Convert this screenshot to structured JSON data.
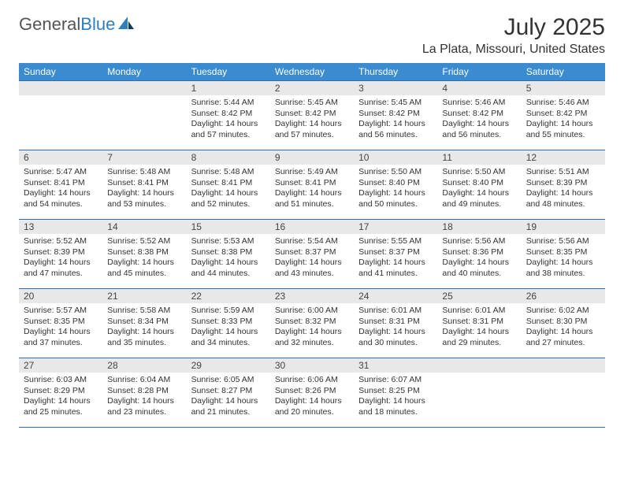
{
  "brand": {
    "part1": "General",
    "part2": "Blue"
  },
  "title": "July 2025",
  "location": "La Plata, Missouri, United States",
  "colors": {
    "header_bg": "#3a8bd0",
    "header_text": "#ffffff",
    "row_border": "#2f6fa8",
    "daynum_bg": "#e8e8e8",
    "brand_blue": "#2f7fbf"
  },
  "weekdays": [
    "Sunday",
    "Monday",
    "Tuesday",
    "Wednesday",
    "Thursday",
    "Friday",
    "Saturday"
  ],
  "weeks": [
    [
      null,
      null,
      {
        "n": "1",
        "sr": "5:44 AM",
        "ss": "8:42 PM",
        "dl": "14 hours and 57 minutes."
      },
      {
        "n": "2",
        "sr": "5:45 AM",
        "ss": "8:42 PM",
        "dl": "14 hours and 57 minutes."
      },
      {
        "n": "3",
        "sr": "5:45 AM",
        "ss": "8:42 PM",
        "dl": "14 hours and 56 minutes."
      },
      {
        "n": "4",
        "sr": "5:46 AM",
        "ss": "8:42 PM",
        "dl": "14 hours and 56 minutes."
      },
      {
        "n": "5",
        "sr": "5:46 AM",
        "ss": "8:42 PM",
        "dl": "14 hours and 55 minutes."
      }
    ],
    [
      {
        "n": "6",
        "sr": "5:47 AM",
        "ss": "8:41 PM",
        "dl": "14 hours and 54 minutes."
      },
      {
        "n": "7",
        "sr": "5:48 AM",
        "ss": "8:41 PM",
        "dl": "14 hours and 53 minutes."
      },
      {
        "n": "8",
        "sr": "5:48 AM",
        "ss": "8:41 PM",
        "dl": "14 hours and 52 minutes."
      },
      {
        "n": "9",
        "sr": "5:49 AM",
        "ss": "8:41 PM",
        "dl": "14 hours and 51 minutes."
      },
      {
        "n": "10",
        "sr": "5:50 AM",
        "ss": "8:40 PM",
        "dl": "14 hours and 50 minutes."
      },
      {
        "n": "11",
        "sr": "5:50 AM",
        "ss": "8:40 PM",
        "dl": "14 hours and 49 minutes."
      },
      {
        "n": "12",
        "sr": "5:51 AM",
        "ss": "8:39 PM",
        "dl": "14 hours and 48 minutes."
      }
    ],
    [
      {
        "n": "13",
        "sr": "5:52 AM",
        "ss": "8:39 PM",
        "dl": "14 hours and 47 minutes."
      },
      {
        "n": "14",
        "sr": "5:52 AM",
        "ss": "8:38 PM",
        "dl": "14 hours and 45 minutes."
      },
      {
        "n": "15",
        "sr": "5:53 AM",
        "ss": "8:38 PM",
        "dl": "14 hours and 44 minutes."
      },
      {
        "n": "16",
        "sr": "5:54 AM",
        "ss": "8:37 PM",
        "dl": "14 hours and 43 minutes."
      },
      {
        "n": "17",
        "sr": "5:55 AM",
        "ss": "8:37 PM",
        "dl": "14 hours and 41 minutes."
      },
      {
        "n": "18",
        "sr": "5:56 AM",
        "ss": "8:36 PM",
        "dl": "14 hours and 40 minutes."
      },
      {
        "n": "19",
        "sr": "5:56 AM",
        "ss": "8:35 PM",
        "dl": "14 hours and 38 minutes."
      }
    ],
    [
      {
        "n": "20",
        "sr": "5:57 AM",
        "ss": "8:35 PM",
        "dl": "14 hours and 37 minutes."
      },
      {
        "n": "21",
        "sr": "5:58 AM",
        "ss": "8:34 PM",
        "dl": "14 hours and 35 minutes."
      },
      {
        "n": "22",
        "sr": "5:59 AM",
        "ss": "8:33 PM",
        "dl": "14 hours and 34 minutes."
      },
      {
        "n": "23",
        "sr": "6:00 AM",
        "ss": "8:32 PM",
        "dl": "14 hours and 32 minutes."
      },
      {
        "n": "24",
        "sr": "6:01 AM",
        "ss": "8:31 PM",
        "dl": "14 hours and 30 minutes."
      },
      {
        "n": "25",
        "sr": "6:01 AM",
        "ss": "8:31 PM",
        "dl": "14 hours and 29 minutes."
      },
      {
        "n": "26",
        "sr": "6:02 AM",
        "ss": "8:30 PM",
        "dl": "14 hours and 27 minutes."
      }
    ],
    [
      {
        "n": "27",
        "sr": "6:03 AM",
        "ss": "8:29 PM",
        "dl": "14 hours and 25 minutes."
      },
      {
        "n": "28",
        "sr": "6:04 AM",
        "ss": "8:28 PM",
        "dl": "14 hours and 23 minutes."
      },
      {
        "n": "29",
        "sr": "6:05 AM",
        "ss": "8:27 PM",
        "dl": "14 hours and 21 minutes."
      },
      {
        "n": "30",
        "sr": "6:06 AM",
        "ss": "8:26 PM",
        "dl": "14 hours and 20 minutes."
      },
      {
        "n": "31",
        "sr": "6:07 AM",
        "ss": "8:25 PM",
        "dl": "14 hours and 18 minutes."
      },
      null,
      null
    ]
  ],
  "labels": {
    "sunrise": "Sunrise: ",
    "sunset": "Sunset: ",
    "daylight": "Daylight: "
  }
}
